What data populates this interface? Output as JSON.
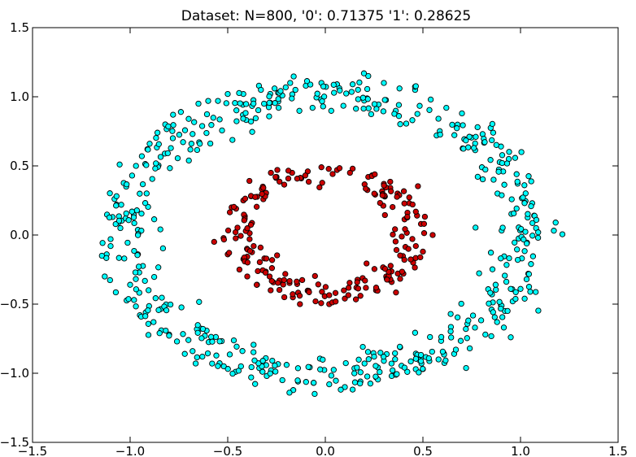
{
  "chart_data": {
    "type": "scatter",
    "title": "Dataset: N=800, '0': 0.71375 '1': 0.28625",
    "xlabel": "",
    "ylabel": "",
    "xlim": [
      -1.5,
      1.5
    ],
    "ylim": [
      -1.5,
      1.5
    ],
    "xticks": [
      -1.5,
      -1.0,
      -0.5,
      0.0,
      0.5,
      1.0,
      1.5
    ],
    "yticks": [
      -1.5,
      -1.0,
      -0.5,
      0.0,
      0.5,
      1.0,
      1.5
    ],
    "xtick_labels": [
      "−1.5",
      "−1.0",
      "−0.5",
      "0.0",
      "0.5",
      "1.0",
      "1.5"
    ],
    "ytick_labels": [
      "−1.5",
      "−1.0",
      "−0.5",
      "0.0",
      "0.5",
      "1.0",
      "1.5"
    ],
    "grid": false,
    "legend": "none",
    "series": [
      {
        "color": "#00ffff",
        "count": 571,
        "shape": "ring",
        "points": [
          [
            -1.13,
            -0.3
          ],
          [
            -1.12,
            -0.14
          ],
          [
            -1.1,
            -0.03
          ],
          [
            -1.1,
            -0.08
          ],
          [
            -1.09,
            0.13
          ],
          [
            -1.08,
            0.26
          ],
          [
            -1.06,
            0.09
          ],
          [
            -1.05,
            0.05
          ],
          [
            -1.03,
            -0.17
          ],
          [
            -1.02,
            0.35
          ],
          [
            -1.0,
            -0.36
          ],
          [
            -0.99,
            0.43
          ],
          [
            -0.98,
            -0.47
          ],
          [
            -0.97,
            0.5
          ],
          [
            -0.95,
            -0.58
          ],
          [
            -0.94,
            0.57
          ],
          [
            -0.92,
            -0.56
          ],
          [
            -0.9,
            0.66
          ],
          [
            -0.88,
            -0.63
          ],
          [
            -0.86,
            0.74
          ],
          [
            -0.84,
            -0.69
          ],
          [
            -0.82,
            0.8
          ],
          [
            -0.8,
            -0.72
          ],
          [
            -0.78,
            0.87
          ],
          [
            -0.76,
            -0.77
          ],
          [
            -0.74,
            0.89
          ],
          [
            -0.72,
            -0.86
          ],
          [
            -0.7,
            0.84
          ],
          [
            -0.68,
            -0.84
          ],
          [
            -0.65,
            0.95
          ],
          [
            -0.63,
            -0.88
          ],
          [
            -0.6,
            0.97
          ],
          [
            -0.58,
            -0.93
          ],
          [
            -0.55,
            0.97
          ],
          [
            -0.52,
            -0.95
          ],
          [
            -0.5,
            1.02
          ],
          [
            -0.46,
            -0.99
          ],
          [
            -0.42,
            1.02
          ],
          [
            -0.38,
            -1.03
          ],
          [
            -0.34,
            1.08
          ],
          [
            -0.3,
            -1.02
          ],
          [
            -0.26,
            1.06
          ],
          [
            -0.22,
            -1.05
          ],
          [
            -0.18,
            1.1
          ],
          [
            -0.14,
            -1.06
          ],
          [
            -0.1,
            1.08
          ],
          [
            -0.06,
            -1.07
          ],
          [
            -0.02,
            1.1
          ],
          [
            0.02,
            -1.08
          ],
          [
            0.06,
            1.09
          ],
          [
            0.1,
            -1.1
          ],
          [
            0.14,
            1.09
          ],
          [
            0.18,
            -1.06
          ],
          [
            0.22,
            1.15
          ],
          [
            0.26,
            -1.03
          ],
          [
            0.3,
            1.1
          ],
          [
            0.34,
            -1.02
          ],
          [
            0.38,
            1.06
          ],
          [
            0.42,
            -0.99
          ],
          [
            0.46,
            1.05
          ],
          [
            0.5,
            -0.97
          ],
          [
            0.54,
            0.98
          ],
          [
            0.58,
            -0.9
          ],
          [
            0.62,
            0.92
          ],
          [
            0.66,
            -0.86
          ],
          [
            0.7,
            0.88
          ],
          [
            0.74,
            -0.82
          ],
          [
            0.78,
            0.78
          ],
          [
            0.82,
            -0.72
          ],
          [
            0.86,
            0.74
          ],
          [
            0.88,
            -0.63
          ],
          [
            0.9,
            0.64
          ],
          [
            0.92,
            -0.55
          ],
          [
            0.94,
            0.55
          ],
          [
            0.96,
            -0.48
          ],
          [
            0.98,
            0.44
          ],
          [
            1.0,
            -0.39
          ],
          [
            1.02,
            0.36
          ],
          [
            1.04,
            -0.28
          ],
          [
            1.06,
            0.23
          ],
          [
            1.07,
            0.14
          ],
          [
            1.08,
            0.05
          ],
          [
            1.09,
            -0.02
          ],
          [
            1.18,
            0.09
          ],
          [
            -0.33,
            1.05
          ],
          [
            0.72,
            -0.68
          ],
          [
            -0.96,
            -0.14
          ],
          [
            0.95,
            -0.74
          ]
        ]
      },
      {
        "color": "#cc0000",
        "count": 229,
        "shape": "ring",
        "points": [
          [
            -0.5,
            -0.14
          ],
          [
            -0.48,
            0.2
          ],
          [
            -0.46,
            0.02
          ],
          [
            -0.44,
            -0.25
          ],
          [
            -0.42,
            0.25
          ],
          [
            -0.4,
            -0.3
          ],
          [
            -0.38,
            0.28
          ],
          [
            -0.35,
            -0.36
          ],
          [
            -0.32,
            0.35
          ],
          [
            -0.28,
            -0.4
          ],
          [
            -0.25,
            0.42
          ],
          [
            -0.21,
            -0.45
          ],
          [
            -0.17,
            0.45
          ],
          [
            -0.13,
            -0.5
          ],
          [
            -0.09,
            0.46
          ],
          [
            -0.05,
            -0.48
          ],
          [
            -0.02,
            0.49
          ],
          [
            0.02,
            -0.5
          ],
          [
            0.06,
            0.47
          ],
          [
            0.1,
            -0.46
          ],
          [
            0.14,
            0.48
          ],
          [
            0.18,
            -0.44
          ],
          [
            0.22,
            0.42
          ],
          [
            0.26,
            -0.4
          ],
          [
            0.3,
            0.37
          ],
          [
            0.34,
            -0.34
          ],
          [
            0.37,
            0.3
          ],
          [
            0.4,
            -0.28
          ],
          [
            0.43,
            0.23
          ],
          [
            0.45,
            -0.2
          ],
          [
            0.47,
            0.14
          ],
          [
            0.49,
            0.08
          ],
          [
            0.5,
            -0.12
          ],
          [
            0.55,
            0.0
          ]
        ]
      }
    ]
  }
}
